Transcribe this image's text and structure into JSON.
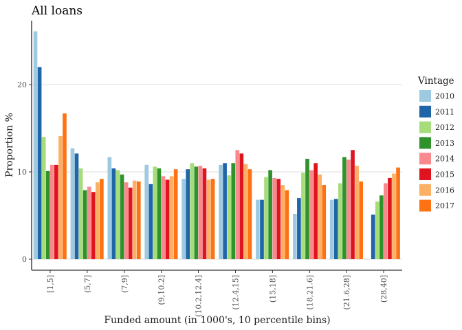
{
  "chart_data": {
    "type": "bar",
    "title": "All loans",
    "xlabel": "Funded amount (in 1000's, 10 percentile bins)",
    "ylabel": "Proportion %",
    "ylim": [
      0,
      27
    ],
    "yticks": [
      0,
      10,
      20
    ],
    "grid": "horizontal major",
    "legend_title": "Vintage",
    "legend_position": "right",
    "categories": [
      "[1,5]",
      "(5,7]",
      "(7,9]",
      "(9,10.2]",
      "(10.2,12.4]",
      "(12.4,15]",
      "(15,18]",
      "(18,21.6]",
      "(21.6,28]",
      "(28,40]"
    ],
    "series": [
      {
        "name": "2010",
        "color": "#9ecae1",
        "values": [
          26.1,
          12.7,
          11.7,
          10.8,
          9.2,
          10.8,
          6.8,
          5.2,
          6.8,
          0
        ]
      },
      {
        "name": "2011",
        "color": "#1f65a8",
        "values": [
          22.0,
          12.1,
          10.4,
          8.6,
          10.3,
          11.0,
          6.8,
          7.0,
          6.9,
          5.1
        ]
      },
      {
        "name": "2012",
        "color": "#a6dc7a",
        "values": [
          14.0,
          10.4,
          10.2,
          10.6,
          11.0,
          9.6,
          9.4,
          9.9,
          8.7,
          6.6
        ]
      },
      {
        "name": "2013",
        "color": "#2f922b",
        "values": [
          10.1,
          7.9,
          9.7,
          10.4,
          10.6,
          11.0,
          10.2,
          11.5,
          11.7,
          7.3
        ]
      },
      {
        "name": "2014",
        "color": "#f8898d",
        "values": [
          10.8,
          8.3,
          8.8,
          9.5,
          10.7,
          12.5,
          9.3,
          10.2,
          11.4,
          8.7
        ]
      },
      {
        "name": "2015",
        "color": "#e0141e",
        "values": [
          10.8,
          7.7,
          8.2,
          9.1,
          10.4,
          12.1,
          9.2,
          11.0,
          12.5,
          9.3
        ]
      },
      {
        "name": "2016",
        "color": "#fbb065",
        "values": [
          14.1,
          8.8,
          9.0,
          9.5,
          9.1,
          10.9,
          8.5,
          9.7,
          10.7,
          9.8
        ]
      },
      {
        "name": "2017",
        "color": "#fd7213",
        "values": [
          16.7,
          9.2,
          8.9,
          10.3,
          9.2,
          10.3,
          7.9,
          8.5,
          8.9,
          10.5
        ]
      }
    ]
  }
}
